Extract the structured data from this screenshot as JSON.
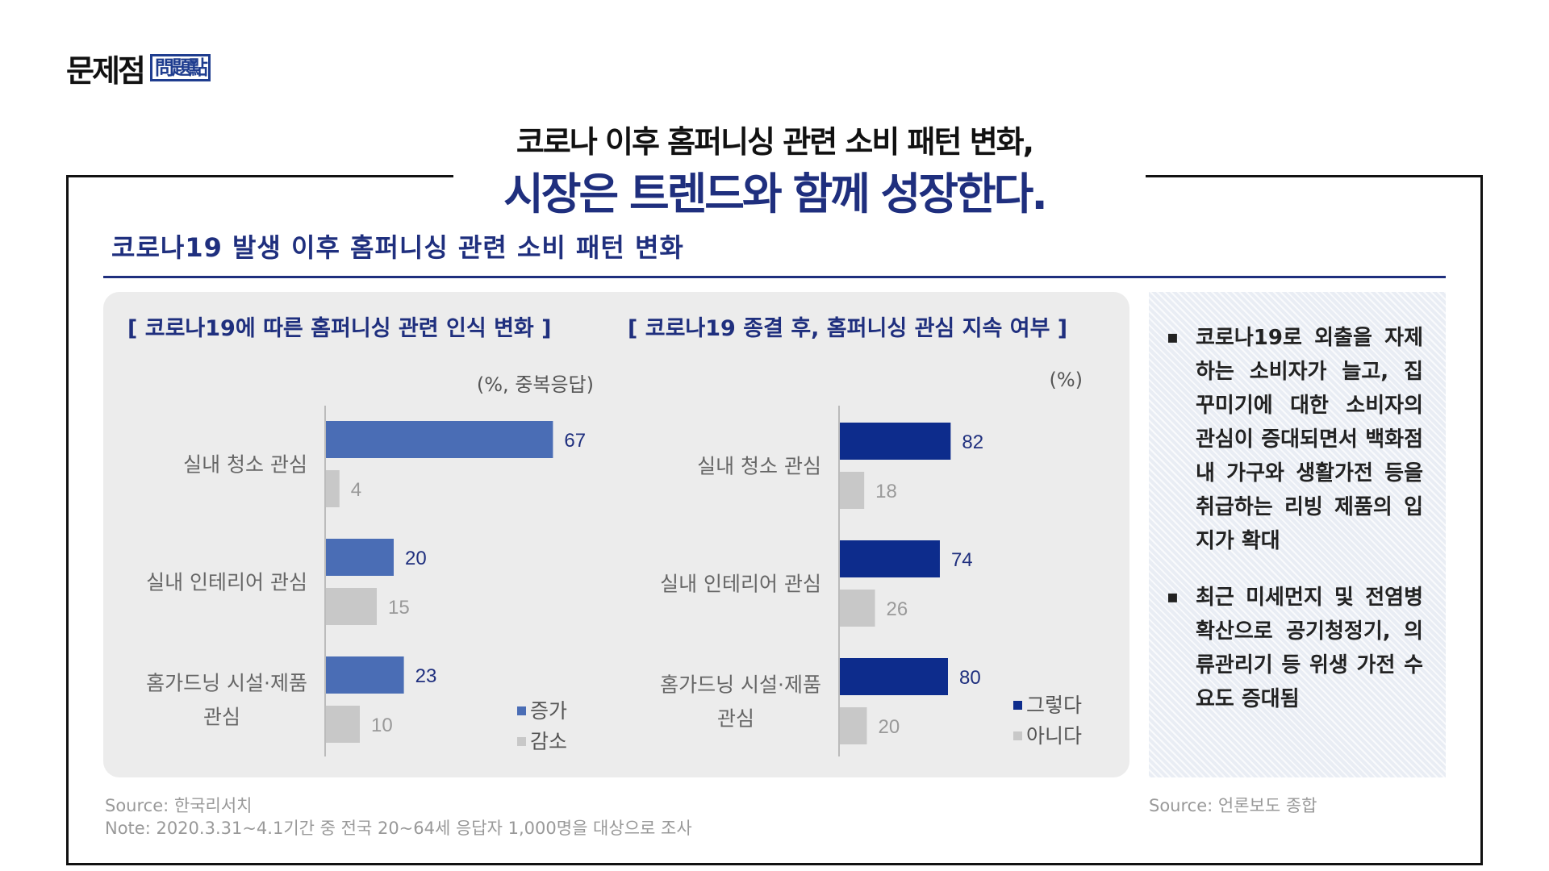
{
  "brand": {
    "main": "문제점",
    "sub": "問題點"
  },
  "headline": {
    "line1": "코로나 이후 홈퍼니싱 관련 소비 패턴 변화,",
    "line2": "시장은 트렌드와 함께 성장한다."
  },
  "section_title": "코로나19 발생 이후 홈퍼니싱 관련 소비 패턴 변화",
  "colors": {
    "navy": "#1f2f7e",
    "blue1": "#4a6db5",
    "blue2": "#0d2c8c",
    "gray": "#c8c8c8"
  },
  "chart_data": [
    {
      "type": "bar",
      "orientation": "horizontal",
      "title": "[ 코로나19에 따른 홈퍼니싱 관련 인식 변화 ]",
      "unit": "(%, 중복응답)",
      "categories": [
        "실내 청소 관심",
        "실내 인테리어 관심",
        "홈가드닝 시설·제품 관심"
      ],
      "category_lines": [
        [
          "실내 청소 관심"
        ],
        [
          "실내 인테리어 관심"
        ],
        [
          "홈가드닝 시설·제품",
          "관심"
        ]
      ],
      "series": [
        {
          "name": "증가",
          "values": [
            67,
            20,
            23
          ],
          "color": "#4a6db5"
        },
        {
          "name": "감소",
          "values": [
            4,
            15,
            10
          ],
          "color": "#c8c8c8"
        }
      ],
      "xlim": [
        0,
        100
      ],
      "legend": "bottom-right"
    },
    {
      "type": "bar",
      "orientation": "horizontal",
      "title": "[ 코로나19 종결 후, 홈퍼니싱 관심 지속 여부 ]",
      "unit": "(%)",
      "categories": [
        "실내 청소 관심",
        "실내 인테리어 관심",
        "홈가드닝 시설·제품 관심"
      ],
      "category_lines": [
        [
          "실내 청소 관심"
        ],
        [
          "실내 인테리어 관심"
        ],
        [
          "홈가드닝 시설·제품",
          "관심"
        ]
      ],
      "series": [
        {
          "name": "그렇다",
          "values": [
            82,
            74,
            80
          ],
          "color": "#0d2c8c"
        },
        {
          "name": "아니다",
          "values": [
            18,
            26,
            20
          ],
          "color": "#c8c8c8"
        }
      ],
      "xlim": [
        0,
        240
      ],
      "legend": "bottom-right"
    }
  ],
  "side_notes": [
    "코로나19로 외출을 자제하는 소비자가 늘고, 집 꾸미기에 대한 소비자의 관심이 증대되면서 백화점 내 가구와 생활가전 등을 취급하는 리빙 제품의 입지가 확대",
    "최근 미세먼지 및 전염병 확산으로 공기청정기, 의류관리기 등 위생 가전 수요도 증대됨"
  ],
  "bullet_symbol": "▪",
  "sources": {
    "left_source": "Source: 한국리서치",
    "left_note": "Note: 2020.3.31~4.1기간 중 전국 20~64세 응답자 1,000명을 대상으로 조사",
    "right_source": "Source: 언론보도 종합"
  }
}
